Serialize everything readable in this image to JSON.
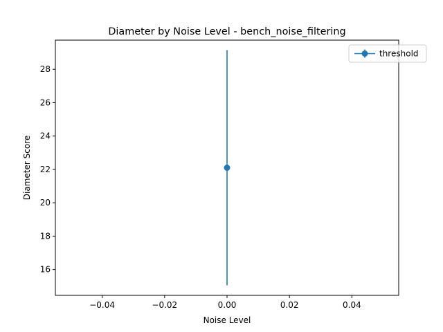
{
  "chart_data": {
    "type": "scatter",
    "title": "Diameter by Noise Level - bench_noise_filtering",
    "xlabel": "Noise Level",
    "ylabel": "Diameter Score",
    "xlim": [
      -0.055,
      0.055
    ],
    "ylim": [
      14.45,
      29.75
    ],
    "xticks": [
      -0.04,
      -0.02,
      0.0,
      0.02,
      0.04
    ],
    "xtick_labels": [
      "−0.04",
      "−0.02",
      "0.00",
      "0.02",
      "0.04"
    ],
    "yticks": [
      16,
      18,
      20,
      22,
      24,
      26,
      28
    ],
    "ytick_labels": [
      "16",
      "18",
      "20",
      "22",
      "24",
      "26",
      "28"
    ],
    "grid": false,
    "legend_position": "top-right",
    "series": [
      {
        "name": "threshold",
        "color": "#1f77b4",
        "points": [
          {
            "x": 0.0,
            "y": 22.1,
            "err_low": 15.05,
            "err_high": 29.15
          }
        ]
      }
    ]
  }
}
